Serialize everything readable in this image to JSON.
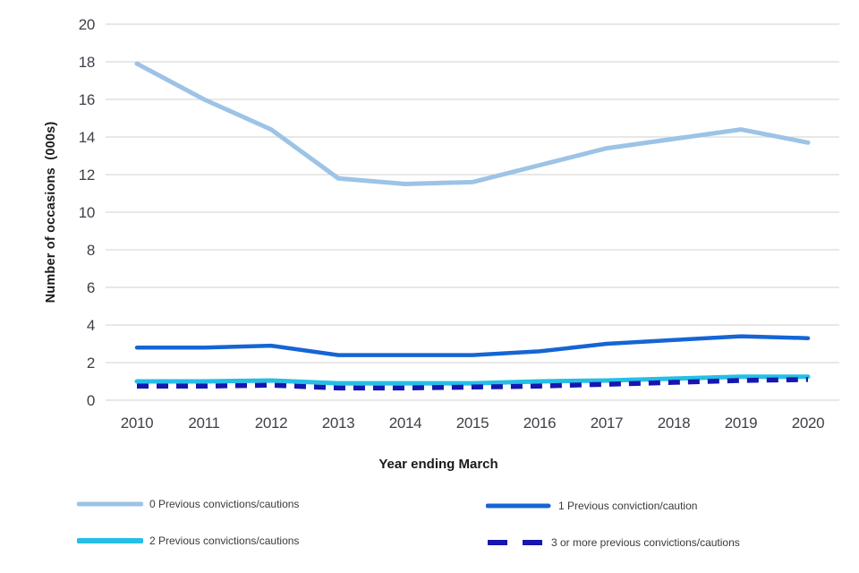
{
  "chart_data": {
    "type": "line",
    "title": "",
    "xlabel": "Year ending March",
    "ylabel": "Number of occasions  (000s)",
    "x": [
      "2010",
      "2011",
      "2012",
      "2013",
      "2014",
      "2015",
      "2016",
      "2017",
      "2018",
      "2019",
      "2020"
    ],
    "ylim": [
      0,
      20
    ],
    "yticks": [
      0,
      2,
      4,
      6,
      8,
      10,
      12,
      14,
      16,
      18,
      20
    ],
    "grid": true,
    "gridline_color": "#d9d9d9",
    "tick_label_color": "#3f4049",
    "legend_position": "bottom",
    "series": [
      {
        "name": "0 Previous convictions/cautions",
        "color": "#9dc3e6",
        "dash": null,
        "width": 5,
        "values": [
          17.9,
          16.0,
          14.4,
          11.8,
          11.5,
          11.6,
          12.5,
          13.4,
          13.9,
          14.4,
          13.7
        ]
      },
      {
        "name": "1 Previous conviction/caution",
        "color": "#1565d4",
        "dash": null,
        "width": 4.5,
        "values": [
          2.8,
          2.8,
          2.9,
          2.4,
          2.4,
          2.4,
          2.6,
          3.0,
          3.2,
          3.4,
          3.3
        ]
      },
      {
        "name": "2 Previous convictions/cautions",
        "color": "#25bfe6",
        "dash": null,
        "width": 5,
        "values": [
          1.0,
          1.0,
          1.05,
          0.9,
          0.9,
          0.9,
          1.0,
          1.05,
          1.15,
          1.25,
          1.25
        ]
      },
      {
        "name": "3 or more previous convictions/cautions",
        "color": "#1616b0",
        "dash": "13 9",
        "width": 5.5,
        "values": [
          0.75,
          0.75,
          0.8,
          0.65,
          0.65,
          0.7,
          0.75,
          0.85,
          0.95,
          1.05,
          1.1
        ]
      }
    ]
  }
}
